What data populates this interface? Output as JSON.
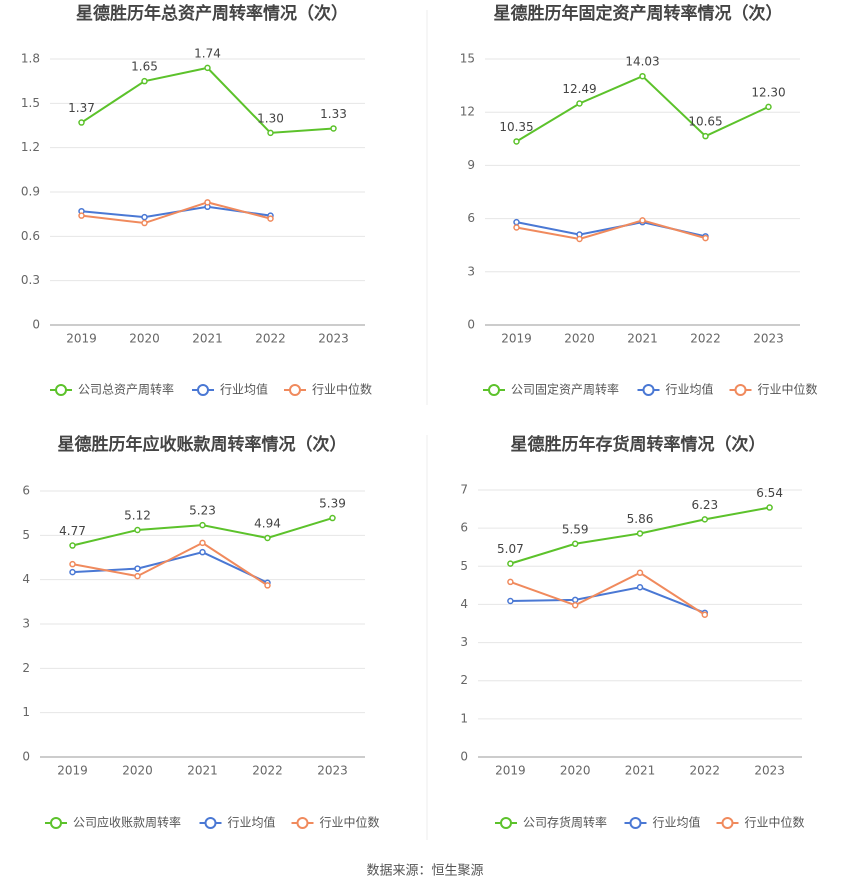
{
  "chart_data": [
    {
      "type": "line",
      "title": "星德胜历年总资产周转率情况（次）",
      "categories": [
        "2019",
        "2020",
        "2021",
        "2022",
        "2023"
      ],
      "ylim": [
        0,
        1.8
      ],
      "yticks": [
        0,
        0.3,
        0.6,
        0.9,
        1.2,
        1.5,
        1.8
      ],
      "grid": true,
      "legend": "bottom",
      "series": [
        {
          "name": "公司总资产周转率",
          "color": "#5cc22b",
          "values": [
            1.37,
            1.65,
            1.74,
            1.3,
            1.33
          ],
          "value_labels": [
            "1.37",
            "1.65",
            "1.74",
            "1.30",
            "1.33"
          ]
        },
        {
          "name": "行业均值",
          "color": "#4a78d4",
          "values": [
            0.77,
            0.73,
            0.8,
            0.74,
            null
          ]
        },
        {
          "name": "行业中位数",
          "color": "#f08a5d",
          "values": [
            0.74,
            0.69,
            0.83,
            0.72,
            null
          ]
        }
      ]
    },
    {
      "type": "line",
      "title": "星德胜历年固定资产周转率情况（次）",
      "categories": [
        "2019",
        "2020",
        "2021",
        "2022",
        "2023"
      ],
      "ylim": [
        0,
        15
      ],
      "yticks": [
        0,
        3,
        6,
        9,
        12,
        15
      ],
      "grid": true,
      "legend": "bottom",
      "series": [
        {
          "name": "公司固定资产周转率",
          "color": "#5cc22b",
          "values": [
            10.35,
            12.49,
            14.03,
            10.65,
            12.3
          ],
          "value_labels": [
            "10.35",
            "12.49",
            "14.03",
            "10.65",
            "12.30"
          ]
        },
        {
          "name": "行业均值",
          "color": "#4a78d4",
          "values": [
            5.8,
            5.1,
            5.8,
            5.0,
            null
          ]
        },
        {
          "name": "行业中位数",
          "color": "#f08a5d",
          "values": [
            5.5,
            4.85,
            5.9,
            4.9,
            null
          ]
        }
      ]
    },
    {
      "type": "line",
      "title": "星德胜历年应收账款周转率情况（次）",
      "categories": [
        "2019",
        "2020",
        "2021",
        "2022",
        "2023"
      ],
      "ylim": [
        0,
        6
      ],
      "yticks": [
        0,
        1,
        2,
        3,
        4,
        5,
        6
      ],
      "grid": true,
      "legend": "bottom",
      "series": [
        {
          "name": "公司应收账款周转率",
          "color": "#5cc22b",
          "values": [
            4.77,
            5.12,
            5.23,
            4.94,
            5.39
          ],
          "value_labels": [
            "4.77",
            "5.12",
            "5.23",
            "4.94",
            "5.39"
          ]
        },
        {
          "name": "行业均值",
          "color": "#4a78d4",
          "values": [
            4.17,
            4.25,
            4.62,
            3.93,
            null
          ]
        },
        {
          "name": "行业中位数",
          "color": "#f08a5d",
          "values": [
            4.35,
            4.08,
            4.83,
            3.87,
            null
          ]
        }
      ]
    },
    {
      "type": "line",
      "title": "星德胜历年存货周转率情况（次）",
      "categories": [
        "2019",
        "2020",
        "2021",
        "2022",
        "2023"
      ],
      "ylim": [
        0,
        7
      ],
      "yticks": [
        0,
        1,
        2,
        3,
        4,
        5,
        6,
        7
      ],
      "grid": true,
      "legend": "bottom",
      "series": [
        {
          "name": "公司存货周转率",
          "color": "#5cc22b",
          "values": [
            5.07,
            5.59,
            5.86,
            6.23,
            6.54
          ],
          "value_labels": [
            "5.07",
            "5.59",
            "5.86",
            "6.23",
            "6.54"
          ]
        },
        {
          "name": "行业均值",
          "color": "#4a78d4",
          "values": [
            4.09,
            4.12,
            4.45,
            3.78,
            null
          ]
        },
        {
          "name": "行业中位数",
          "color": "#f08a5d",
          "values": [
            4.59,
            3.98,
            4.83,
            3.73,
            null
          ]
        }
      ]
    }
  ],
  "source": "数据来源：恒生聚源"
}
